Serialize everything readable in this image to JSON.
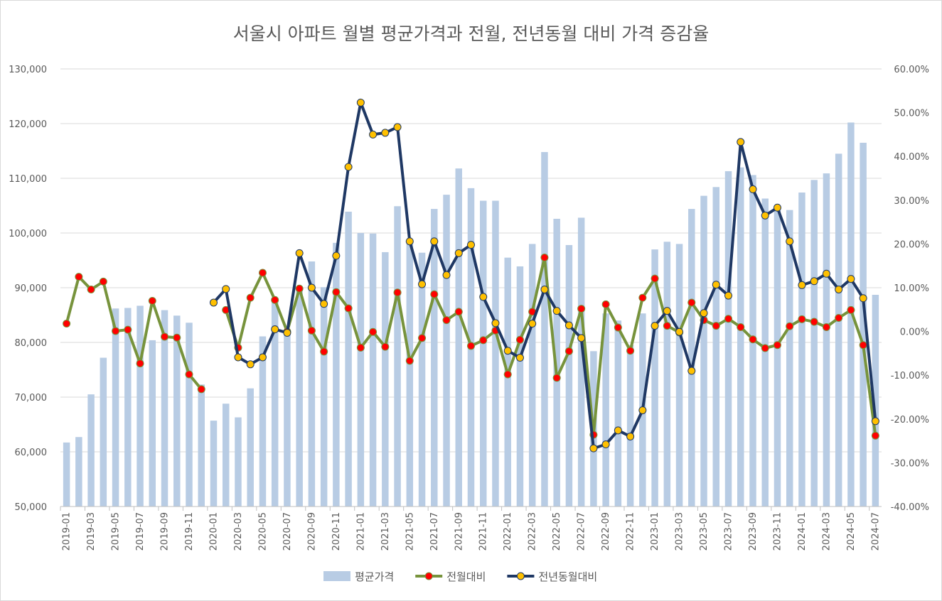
{
  "chart_data": {
    "type": "bar+line",
    "title": "서울시 아파트 월별 평균가격과 전월, 전년동월 대비 가격 증감율",
    "categories": [
      "2019-01",
      "2019-02",
      "2019-03",
      "2019-04",
      "2019-05",
      "2019-06",
      "2019-07",
      "2019-08",
      "2019-09",
      "2019-10",
      "2019-11",
      "2019-12",
      "2020-01",
      "2020-02",
      "2020-03",
      "2020-04",
      "2020-05",
      "2020-06",
      "2020-07",
      "2020-08",
      "2020-09",
      "2020-10",
      "2020-11",
      "2020-12",
      "2021-01",
      "2021-02",
      "2021-03",
      "2021-04",
      "2021-05",
      "2021-06",
      "2021-07",
      "2021-08",
      "2021-09",
      "2021-10",
      "2021-11",
      "2021-12",
      "2022-01",
      "2022-02",
      "2022-03",
      "2022-04",
      "2022-05",
      "2022-06",
      "2022-07",
      "2022-08",
      "2022-09",
      "2022-10",
      "2022-11",
      "2022-12",
      "2023-01",
      "2023-02",
      "2023-03",
      "2023-04",
      "2023-05",
      "2023-06",
      "2023-07",
      "2023-08",
      "2023-09",
      "2023-10",
      "2023-11",
      "2023-12",
      "2024-01",
      "2024-02",
      "2024-03",
      "2024-04",
      "2024-05",
      "2024-06",
      "2024-07"
    ],
    "x_tick_labels": [
      "2019-01",
      "2019-03",
      "2019-05",
      "2019-07",
      "2019-09",
      "2019-11",
      "2020-01",
      "2020-03",
      "2020-05",
      "2020-07",
      "2020-09",
      "2020-11",
      "2021-01",
      "2021-03",
      "2021-05",
      "2021-07",
      "2021-09",
      "2021-11",
      "2022-01",
      "2022-03",
      "2022-05",
      "2022-07",
      "2022-09",
      "2022-11",
      "2023-01",
      "2023-03",
      "2023-05",
      "2023-07",
      "2023-09",
      "2023-11",
      "2024-01",
      "2024-03",
      "2024-05",
      "2024-07"
    ],
    "y_left": {
      "min": 50000,
      "max": 130000,
      "step": 10000,
      "tick_labels": [
        "50,000",
        "60,000",
        "70,000",
        "80,000",
        "90,000",
        "100,000",
        "110,000",
        "120,000",
        "130,000"
      ]
    },
    "y_right": {
      "min": -40,
      "max": 60,
      "step": 10,
      "tick_labels": [
        "-40.00%",
        "-30.00%",
        "-20.00%",
        "-10.00%",
        "0.00%",
        "10.00%",
        "20.00%",
        "30.00%",
        "40.00%",
        "50.00%",
        "60.00%"
      ]
    },
    "grid": true,
    "legend_position": "bottom",
    "series": [
      {
        "name": "평균가격",
        "kind": "bar",
        "axis": "left",
        "color": "#b8cce4",
        "values": [
          61700,
          62700,
          70500,
          77200,
          86200,
          86300,
          86700,
          80400,
          85900,
          84900,
          83600,
          72300,
          65700,
          68800,
          66300,
          71600,
          81100,
          87500,
          82300,
          89700,
          94800,
          90100,
          98200,
          103900,
          100000,
          99900,
          96500,
          104900,
          98400,
          96400,
          104400,
          107000,
          111800,
          108200,
          105900,
          105900,
          95500,
          93900,
          98000,
          114800,
          102600,
          97800,
          102800,
          78400,
          85300,
          84000,
          79500,
          85300,
          97000,
          98400,
          98000,
          104400,
          106800,
          108400,
          111300,
          112000,
          110600,
          106300,
          104300,
          104200,
          107400,
          109700,
          110900,
          114500,
          120200,
          116500,
          88700
        ]
      },
      {
        "name": "전월대비",
        "kind": "line",
        "axis": "right",
        "color": "#77933c",
        "marker": "#ff0000",
        "values": [
          1.8,
          12.5,
          9.6,
          11.4,
          0.1,
          0.4,
          -7.3,
          7.0,
          -1.2,
          -1.4,
          -9.8,
          -13.2,
          null,
          4.9,
          -3.7,
          7.7,
          13.4,
          7.2,
          0.0,
          9.8,
          0.2,
          -4.6,
          9.0,
          5.3,
          -3.7,
          -0.1,
          -3.5,
          8.9,
          -6.7,
          -1.5,
          8.5,
          2.6,
          4.5,
          -3.3,
          -2.0,
          0.2,
          -9.8,
          -1.9,
          4.5,
          16.9,
          -10.6,
          -4.5,
          5.2,
          -23.6,
          6.2,
          0.9,
          -4.4,
          7.7,
          12.1,
          1.3,
          -0.2,
          6.6,
          2.6,
          1.3,
          2.9,
          1.0,
          -1.8,
          -3.8,
          -3.1,
          1.2,
          2.8,
          2.2,
          1.0,
          3.1,
          4.9,
          -3.1,
          -23.8
        ]
      },
      {
        "name": "전년동월대비",
        "kind": "line",
        "axis": "right",
        "color": "#1f3864",
        "marker": "#ffc000",
        "values": [
          null,
          null,
          null,
          null,
          null,
          null,
          null,
          null,
          null,
          null,
          null,
          null,
          6.6,
          9.7,
          -5.9,
          -7.5,
          -5.9,
          0.5,
          -0.3,
          17.9,
          10.0,
          6.3,
          17.3,
          37.6,
          52.3,
          45.0,
          45.4,
          46.7,
          20.6,
          10.8,
          20.6,
          12.9,
          17.9,
          19.8,
          7.9,
          1.9,
          -4.4,
          -6.0,
          1.8,
          9.6,
          4.7,
          1.4,
          -1.5,
          -26.7,
          -25.8,
          -22.6,
          -24.0,
          -18.0,
          1.3,
          4.7,
          -0.1,
          -9.0,
          4.2,
          10.7,
          8.2,
          43.3,
          32.5,
          26.5,
          28.3,
          20.6,
          10.6,
          11.5,
          13.2,
          9.6,
          12.0,
          7.6,
          -20.5
        ]
      }
    ]
  }
}
